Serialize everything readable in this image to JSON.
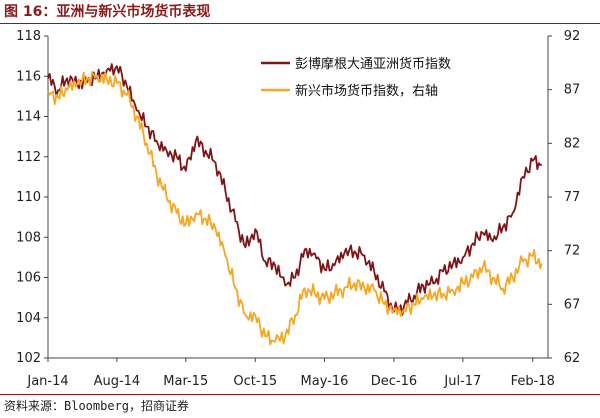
{
  "title": "图 16：亚洲与新兴市场货币表现",
  "source": "资料来源：Bloomberg，招商证券",
  "colors": {
    "title": "#8b1a1a",
    "axis": "#444444"
  },
  "chart_data": {
    "type": "line",
    "title": "",
    "x_ticks": [
      "Jan-14",
      "Aug-14",
      "Mar-15",
      "Oct-15",
      "May-16",
      "Dec-16",
      "Jul-17",
      "Feb-18"
    ],
    "y_left": {
      "ylim": [
        102,
        118
      ],
      "ticks": [
        "102",
        "104",
        "106",
        "108",
        "110",
        "112",
        "114",
        "116",
        "118"
      ]
    },
    "y_right": {
      "ylim": [
        62,
        92
      ],
      "ticks": [
        "62",
        "67",
        "72",
        "77",
        "82",
        "87",
        "92"
      ]
    },
    "legend_position": "top-right",
    "grid": false,
    "series": [
      {
        "name": "彭博摩根大通亚洲货币指数",
        "axis": "left",
        "color": "#7f1417",
        "x": [
          "2014-01",
          "2014-02",
          "2014-03",
          "2014-04",
          "2014-05",
          "2014-06",
          "2014-07",
          "2014-08",
          "2014-09",
          "2014-10",
          "2014-11",
          "2014-12",
          "2015-01",
          "2015-02",
          "2015-03",
          "2015-04",
          "2015-05",
          "2015-06",
          "2015-07",
          "2015-08",
          "2015-09",
          "2015-10",
          "2015-11",
          "2015-12",
          "2016-01",
          "2016-02",
          "2016-03",
          "2016-04",
          "2016-05",
          "2016-06",
          "2016-07",
          "2016-08",
          "2016-09",
          "2016-10",
          "2016-11",
          "2016-12",
          "2017-01",
          "2017-02",
          "2017-03",
          "2017-04",
          "2017-05",
          "2017-06",
          "2017-07",
          "2017-08",
          "2017-09",
          "2017-10",
          "2017-11",
          "2017-12",
          "2018-01",
          "2018-02",
          "2018-03"
        ],
        "values": [
          115.9,
          115.3,
          115.9,
          115.6,
          115.7,
          116.0,
          116.3,
          116.5,
          115.5,
          114.3,
          113.5,
          112.8,
          112.3,
          112.0,
          111.3,
          112.8,
          112.3,
          111.7,
          110.3,
          108.8,
          107.5,
          108.4,
          106.8,
          106.6,
          105.6,
          106.0,
          107.4,
          107.2,
          106.4,
          106.6,
          107.2,
          107.3,
          107.1,
          106.3,
          105.3,
          104.3,
          104.6,
          105.1,
          105.6,
          105.7,
          106.3,
          106.7,
          107.0,
          107.7,
          108.2,
          107.8,
          108.5,
          109.2,
          111.0,
          111.8,
          111.6
        ]
      },
      {
        "name": "新兴市场货币指数，右轴",
        "axis": "right",
        "color": "#f5a623",
        "x": [
          "2014-01",
          "2014-02",
          "2014-03",
          "2014-04",
          "2014-05",
          "2014-06",
          "2014-07",
          "2014-08",
          "2014-09",
          "2014-10",
          "2014-11",
          "2014-12",
          "2015-01",
          "2015-02",
          "2015-03",
          "2015-04",
          "2015-05",
          "2015-06",
          "2015-07",
          "2015-08",
          "2015-09",
          "2015-10",
          "2015-11",
          "2015-12",
          "2016-01",
          "2016-02",
          "2016-03",
          "2016-04",
          "2016-05",
          "2016-06",
          "2016-07",
          "2016-08",
          "2016-09",
          "2016-10",
          "2016-11",
          "2016-12",
          "2017-01",
          "2017-02",
          "2017-03",
          "2017-04",
          "2017-05",
          "2017-06",
          "2017-07",
          "2017-08",
          "2017-09",
          "2017-10",
          "2017-11",
          "2017-12",
          "2018-01",
          "2018-02",
          "2018-03"
        ],
        "values": [
          86.8,
          86.3,
          87.0,
          87.5,
          88.0,
          88.3,
          88.0,
          87.6,
          86.5,
          84.5,
          82.0,
          79.2,
          77.0,
          75.5,
          74.5,
          75.5,
          75.0,
          74.0,
          71.5,
          68.5,
          66.0,
          66.0,
          64.0,
          63.5,
          64.0,
          66.0,
          68.5,
          68.0,
          67.5,
          68.0,
          68.5,
          69.0,
          68.5,
          68.3,
          67.0,
          66.5,
          66.5,
          67.0,
          67.5,
          67.8,
          68.0,
          68.3,
          69.0,
          69.5,
          70.5,
          69.5,
          68.5,
          69.5,
          71.0,
          71.5,
          70.8
        ]
      }
    ]
  }
}
